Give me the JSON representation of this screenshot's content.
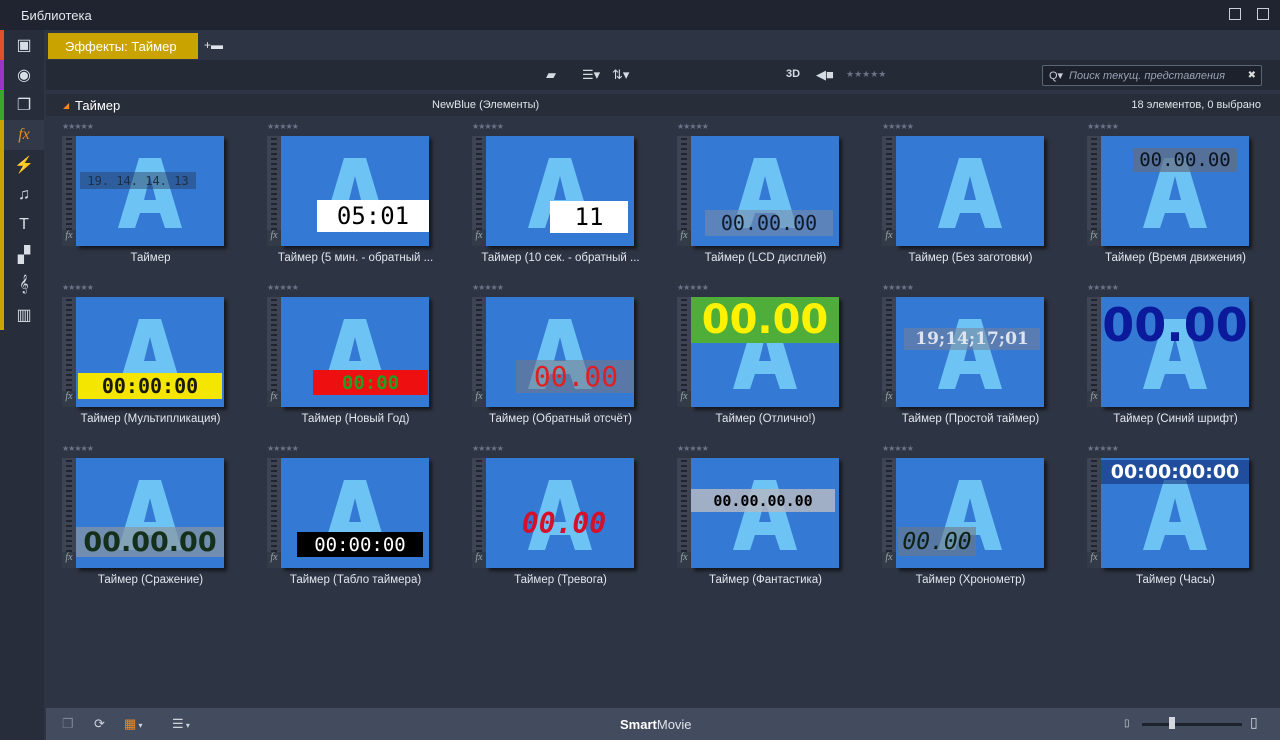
{
  "window": {
    "title": "Библиотека"
  },
  "sidebar": {
    "items": [
      {
        "icon": "box-icon",
        "glyph": "▣",
        "stripe": "#e0502a"
      },
      {
        "icon": "film-reel-icon",
        "glyph": "◉",
        "stripe": "#9a35c8"
      },
      {
        "icon": "stack-icon",
        "glyph": "❐",
        "stripe": "#3aa62a"
      },
      {
        "icon": "fx-icon",
        "glyph": "fx",
        "stripe": "#c9a400",
        "active": true
      },
      {
        "icon": "lightning-icon",
        "glyph": "⚡",
        "stripe": "#c9a400"
      },
      {
        "icon": "music-note-icon",
        "glyph": "♫",
        "stripe": "#c9a400"
      },
      {
        "icon": "text-icon",
        "glyph": "T",
        "stripe": "#c9a400"
      },
      {
        "icon": "montage-icon",
        "glyph": "▞",
        "stripe": "#c9a400"
      },
      {
        "icon": "clef-icon",
        "glyph": "𝄞",
        "stripe": "#c9a400"
      },
      {
        "icon": "piano-icon",
        "glyph": "▥",
        "stripe": "#c9a400"
      }
    ]
  },
  "tabs": {
    "active": "Эффекты: Таймер"
  },
  "toolbar": {
    "view3d": "3D",
    "search_placeholder": "Поиск текущ. представления"
  },
  "group": {
    "title": "Таймер",
    "source": "NewBlue (Элементы)",
    "count": "18 элементов, 0 выбрано"
  },
  "items": [
    {
      "label": "Таймер",
      "overlay": "19. 14. 14. 13",
      "fg": "#1d2e45",
      "bg": "rgba(40,60,90,0.45)"
    },
    {
      "label": "Таймер (5 мин. - обратный ...",
      "overlay": "05:01",
      "fg": "#000000",
      "bg": "#ffffff"
    },
    {
      "label": "Таймер (10 сек. - обратный ...",
      "overlay": "11",
      "fg": "#000000",
      "bg": "#ffffff"
    },
    {
      "label": "Таймер (LCD дисплей)",
      "overlay": "00.00.00",
      "fg": "#111a28",
      "bg": "rgba(120,140,170,0.6)"
    },
    {
      "label": "Таймер (Без заготовки)",
      "overlay": "",
      "fg": "",
      "bg": ""
    },
    {
      "label": "Таймер (Время движения)",
      "overlay": "00.00.00",
      "fg": "#0b1420",
      "bg": "rgba(100,110,130,0.7)"
    },
    {
      "label": "Таймер (Мультипликация)",
      "overlay": "00:00:00",
      "fg": "#1a1a00",
      "bg": "#f4e600"
    },
    {
      "label": "Таймер (Новый Год)",
      "overlay": "00:00",
      "fg": "#1fa020",
      "bg": "#ee1010"
    },
    {
      "label": "Таймер (Обратный отсчёт)",
      "overlay": "00.00",
      "fg": "#e02020",
      "bg": "rgba(120,120,130,0.55)"
    },
    {
      "label": "Таймер (Отлично!)",
      "overlay": "00.00",
      "fg": "#fff200",
      "bg": "#4fae3a"
    },
    {
      "label": "Таймер (Простой таймер)",
      "overlay": "19;14;17;01",
      "fg": "#dde4f0",
      "bg": "rgba(120,130,150,0.55)"
    },
    {
      "label": "Таймер (Синий шрифт)",
      "overlay": "00.00",
      "fg": "#0b1a9a",
      "bg": "transparent"
    },
    {
      "label": "Таймер (Сражение)",
      "overlay": "00.00.00",
      "fg": "#14301a",
      "bg": "rgba(140,150,160,0.7)"
    },
    {
      "label": "Таймер (Табло таймера)",
      "overlay": "00:00:00",
      "fg": "#ffffff",
      "bg": "#000000"
    },
    {
      "label": "Таймер (Тревога)",
      "overlay": "00.00",
      "fg": "#d4102a",
      "bg": "transparent"
    },
    {
      "label": "Таймер (Фантастика)",
      "overlay": "00.00.00.00",
      "fg": "#000000",
      "bg": "rgba(180,185,195,0.85)"
    },
    {
      "label": "Таймер (Хронометр)",
      "overlay": "00.00",
      "fg": "#0f2014",
      "bg": "rgba(110,120,130,0.6)"
    },
    {
      "label": "Таймер (Часы)",
      "overlay": "00:00:00:00",
      "fg": "#ffffff",
      "bg": "rgba(20,50,120,0.6)"
    }
  ],
  "statusbar": {
    "brand_bold": "Smart",
    "brand_rest": "Movie",
    "zoom_level": 0.3
  },
  "colors": {
    "accent": "#c9a400",
    "orange": "#f08a1d"
  }
}
